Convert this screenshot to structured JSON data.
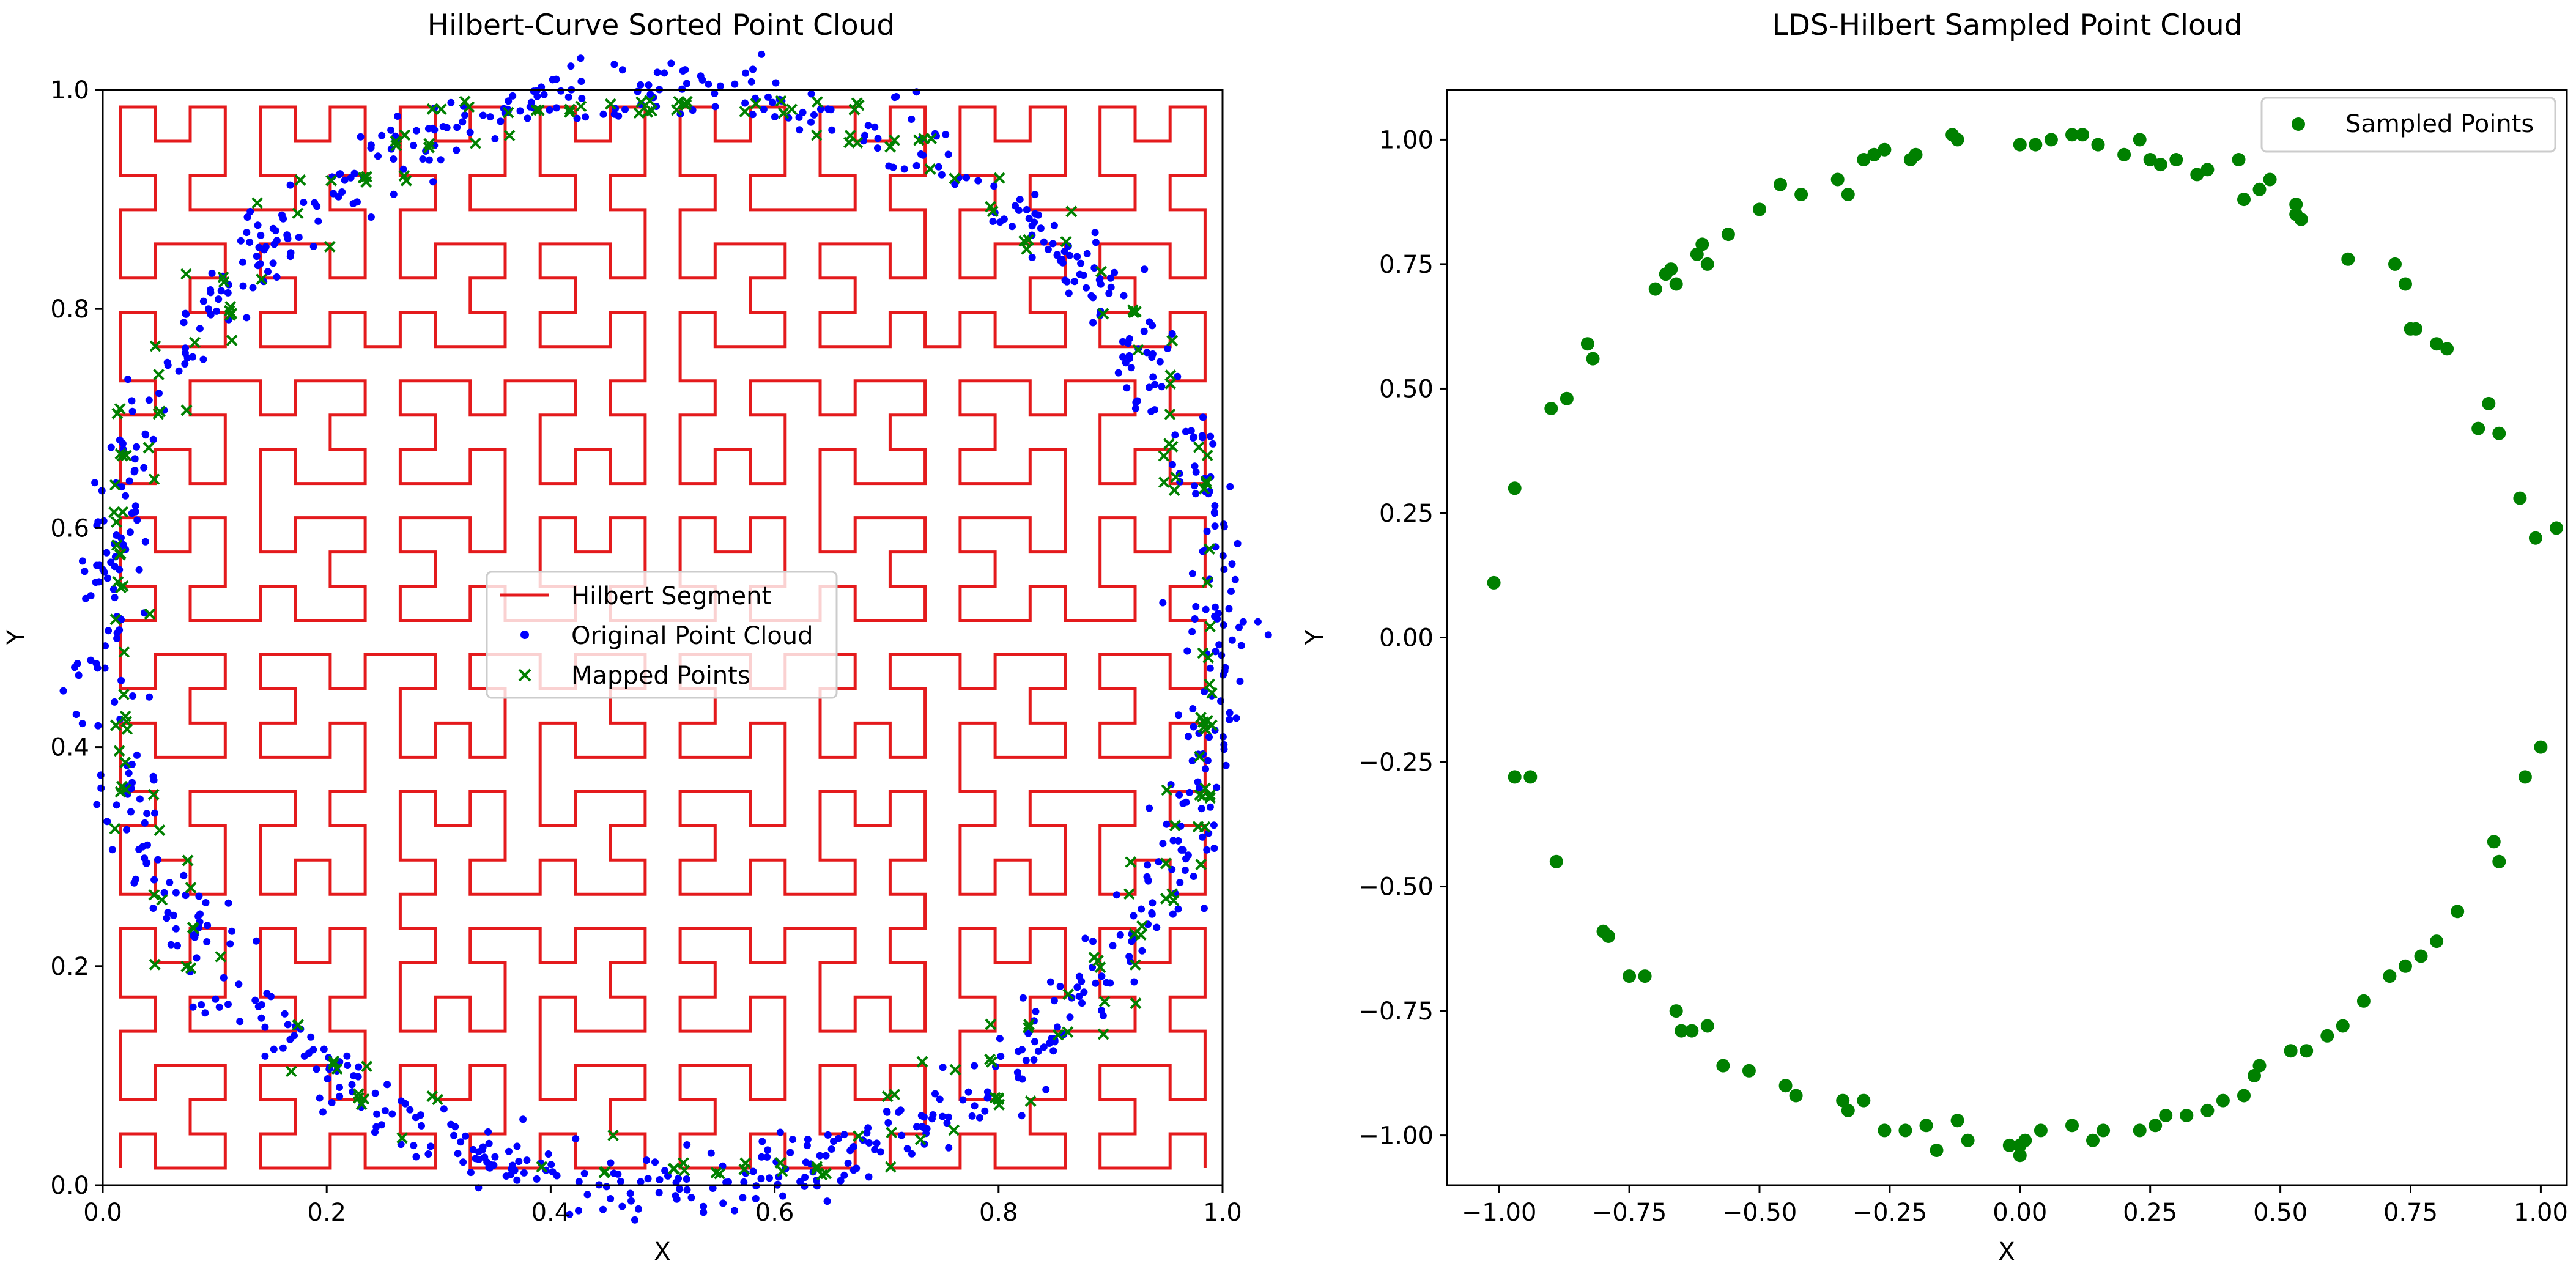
{
  "chart_data": [
    {
      "type": "line",
      "title": "Hilbert-Curve Sorted Point Cloud",
      "xlabel": "X",
      "ylabel": "Y",
      "xlim": [
        0.0,
        1.0
      ],
      "ylim": [
        0.0,
        1.0
      ],
      "xticks": [
        "0.0",
        "0.2",
        "0.4",
        "0.6",
        "0.8",
        "1.0"
      ],
      "yticks": [
        "0.0",
        "0.2",
        "0.4",
        "0.6",
        "0.8",
        "1.0"
      ],
      "xtick_values": [
        0.0,
        0.2,
        0.4,
        0.6,
        0.8,
        1.0
      ],
      "ytick_values": [
        0.0,
        0.2,
        0.4,
        0.6,
        0.8,
        1.0
      ],
      "hilbert_order": 5,
      "circle": {
        "cx": 0.5,
        "cy": 0.5,
        "r": 0.5,
        "noise": 0.015
      },
      "original_point_count": 900,
      "mapped_point_count": 240,
      "legend_position": "center",
      "series": [
        {
          "name": "Hilbert Segment",
          "kind": "line",
          "color": "#e41a1c"
        },
        {
          "name": "Original Point Cloud",
          "kind": "scatter",
          "marker": "dot",
          "color": "#0000ff"
        },
        {
          "name": "Mapped Points",
          "kind": "scatter",
          "marker": "x",
          "color": "#008000"
        }
      ]
    },
    {
      "type": "scatter",
      "title": "LDS-Hilbert Sampled Point Cloud",
      "xlabel": "X",
      "ylabel": "Y",
      "xlim": [
        -1.1,
        1.05
      ],
      "ylim": [
        -1.1,
        1.1
      ],
      "xticks": [
        "−1.00",
        "−0.75",
        "−0.50",
        "−0.25",
        "0.00",
        "0.25",
        "0.50",
        "0.75",
        "1.00"
      ],
      "yticks": [
        "−1.00",
        "−0.75",
        "−0.50",
        "−0.25",
        "0.00",
        "0.25",
        "0.50",
        "0.75",
        "1.00"
      ],
      "xtick_values": [
        -1.0,
        -0.75,
        -0.5,
        -0.25,
        0.0,
        0.25,
        0.5,
        0.75,
        1.0
      ],
      "ytick_values": [
        -1.0,
        -0.75,
        -0.5,
        -0.25,
        0.0,
        0.25,
        0.5,
        0.75,
        1.0
      ],
      "legend_position": "top-right",
      "series": [
        {
          "name": "Sampled Points",
          "color": "#008000",
          "points": [
            [
              0.0,
              0.99
            ],
            [
              0.03,
              0.99
            ],
            [
              0.06,
              1.0
            ],
            [
              0.1,
              1.01
            ],
            [
              0.12,
              1.01
            ],
            [
              0.15,
              0.99
            ],
            [
              0.2,
              0.97
            ],
            [
              0.23,
              1.0
            ],
            [
              0.25,
              0.96
            ],
            [
              0.27,
              0.95
            ],
            [
              0.3,
              0.96
            ],
            [
              0.34,
              0.93
            ],
            [
              0.36,
              0.94
            ],
            [
              0.42,
              0.96
            ],
            [
              0.43,
              0.88
            ],
            [
              0.46,
              0.9
            ],
            [
              0.48,
              0.92
            ],
            [
              0.53,
              0.87
            ],
            [
              0.53,
              0.85
            ],
            [
              0.54,
              0.84
            ],
            [
              0.63,
              0.76
            ],
            [
              0.72,
              0.75
            ],
            [
              0.74,
              0.71
            ],
            [
              0.75,
              0.62
            ],
            [
              0.76,
              0.62
            ],
            [
              0.8,
              0.59
            ],
            [
              0.82,
              0.58
            ],
            [
              0.88,
              0.42
            ],
            [
              0.9,
              0.47
            ],
            [
              0.92,
              0.41
            ],
            [
              0.96,
              0.28
            ],
            [
              0.99,
              0.2
            ],
            [
              1.03,
              0.22
            ],
            [
              -0.12,
              1.0
            ],
            [
              -0.13,
              1.01
            ],
            [
              -0.2,
              0.97
            ],
            [
              -0.21,
              0.96
            ],
            [
              -0.26,
              0.98
            ],
            [
              -0.28,
              0.97
            ],
            [
              -0.3,
              0.96
            ],
            [
              -0.35,
              0.92
            ],
            [
              -0.33,
              0.89
            ],
            [
              -0.42,
              0.89
            ],
            [
              -0.46,
              0.91
            ],
            [
              -0.5,
              0.86
            ],
            [
              -0.56,
              0.81
            ],
            [
              -0.6,
              0.75
            ],
            [
              -0.61,
              0.79
            ],
            [
              -0.62,
              0.77
            ],
            [
              -0.66,
              0.71
            ],
            [
              -0.67,
              0.74
            ],
            [
              -0.68,
              0.73
            ],
            [
              -0.7,
              0.7
            ],
            [
              -0.82,
              0.56
            ],
            [
              -0.83,
              0.59
            ],
            [
              -0.87,
              0.48
            ],
            [
              -0.9,
              0.46
            ],
            [
              -0.97,
              0.3
            ],
            [
              -1.01,
              0.11
            ],
            [
              0.97,
              -0.28
            ],
            [
              1.0,
              -0.22
            ],
            [
              0.91,
              -0.41
            ],
            [
              0.92,
              -0.45
            ],
            [
              0.84,
              -0.55
            ],
            [
              0.8,
              -0.61
            ],
            [
              0.77,
              -0.64
            ],
            [
              0.74,
              -0.66
            ],
            [
              0.71,
              -0.68
            ],
            [
              0.66,
              -0.73
            ],
            [
              0.62,
              -0.78
            ],
            [
              0.59,
              -0.8
            ],
            [
              0.55,
              -0.83
            ],
            [
              0.52,
              -0.83
            ],
            [
              0.46,
              -0.86
            ],
            [
              0.45,
              -0.88
            ],
            [
              0.43,
              -0.92
            ],
            [
              0.39,
              -0.93
            ],
            [
              0.36,
              -0.95
            ],
            [
              0.32,
              -0.96
            ],
            [
              0.28,
              -0.96
            ],
            [
              0.26,
              -0.98
            ],
            [
              0.23,
              -0.99
            ],
            [
              0.16,
              -0.99
            ],
            [
              0.14,
              -1.01
            ],
            [
              0.1,
              -0.98
            ],
            [
              0.04,
              -0.99
            ],
            [
              0.01,
              -1.01
            ],
            [
              0.0,
              -1.04
            ],
            [
              -0.02,
              -1.02
            ],
            [
              0.0,
              -1.02
            ],
            [
              -0.1,
              -1.01
            ],
            [
              -0.12,
              -0.97
            ],
            [
              -0.16,
              -1.03
            ],
            [
              -0.18,
              -0.98
            ],
            [
              -0.22,
              -0.99
            ],
            [
              -0.26,
              -0.99
            ],
            [
              -0.3,
              -0.93
            ],
            [
              -0.33,
              -0.95
            ],
            [
              -0.34,
              -0.93
            ],
            [
              -0.43,
              -0.92
            ],
            [
              -0.45,
              -0.9
            ],
            [
              -0.52,
              -0.87
            ],
            [
              -0.57,
              -0.86
            ],
            [
              -0.6,
              -0.78
            ],
            [
              -0.63,
              -0.79
            ],
            [
              -0.65,
              -0.79
            ],
            [
              -0.66,
              -0.75
            ],
            [
              -0.72,
              -0.68
            ],
            [
              -0.75,
              -0.68
            ],
            [
              -0.79,
              -0.6
            ],
            [
              -0.8,
              -0.59
            ],
            [
              -0.89,
              -0.45
            ],
            [
              -0.94,
              -0.28
            ],
            [
              -0.97,
              -0.28
            ]
          ]
        }
      ]
    }
  ]
}
